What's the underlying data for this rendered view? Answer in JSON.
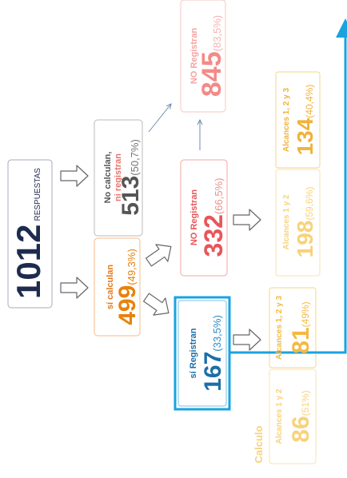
{
  "nodes": [
    {
      "value": "1012",
      "label": "RESPUESTAS"
    },
    {
      "label": "No calculan,",
      "label2": "ni registran",
      "value": "513",
      "percent": "(50,7%)"
    },
    {
      "label": "sí calculan",
      "value": "499",
      "percent": "(49,3%)"
    },
    {
      "label": "NO Registran",
      "value": "845",
      "percent": "(83,5%)"
    },
    {
      "label": "NO Registran",
      "value": "332",
      "percent": "(66,5%)"
    },
    {
      "label": "sí Registran",
      "value": "167",
      "percent": "(33,5%)"
    },
    {
      "label": "Alcances 1, 2 y 3",
      "value": "134",
      "percent": "(40,4%)"
    },
    {
      "label": "Alcances 1 y 2",
      "value": "198",
      "percent": "(59,6%)"
    },
    {
      "label": "Alcances 1, 2 y 3",
      "value": "81",
      "percent": "(49%)"
    },
    {
      "label": "Alcances 1 y 2",
      "value": "86",
      "percent": "(51%)"
    }
  ],
  "group_label": "Calculo"
}
